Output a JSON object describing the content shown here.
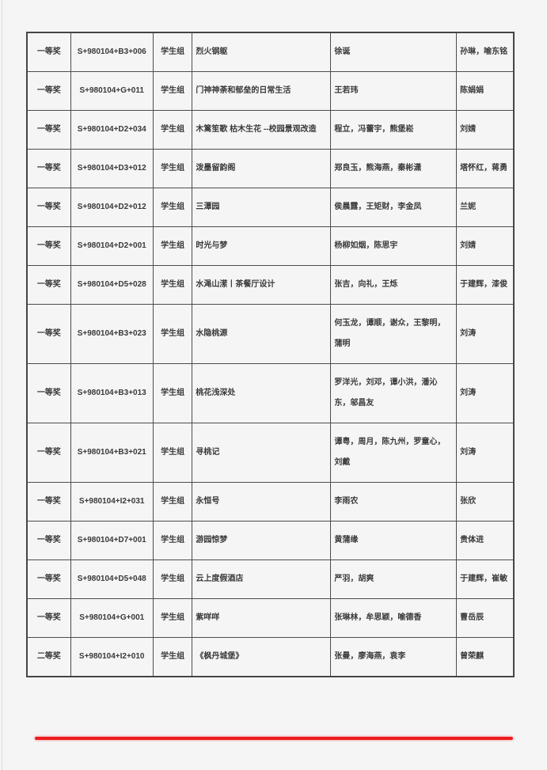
{
  "page": {
    "background_color": "#f5f5f6",
    "divider_color": "#ec1d1d",
    "border_color": "#4c4c4c",
    "text_color": "#3a3a3a"
  },
  "table": {
    "column_keys": [
      "award",
      "code",
      "group",
      "title",
      "authors",
      "advisors"
    ],
    "rows": [
      {
        "award": "一等奖",
        "code": "S+980104+B3+006",
        "group": "学生组",
        "title": "烈火钢躯",
        "authors": "徐诞",
        "advisors": "孙琳，喻东铭"
      },
      {
        "award": "一等奖",
        "code": "S+980104+G+011",
        "group": "学生组",
        "title": "门神神荼和郁垒的日常生活",
        "authors": "王若玮",
        "advisors": "陈娟娟"
      },
      {
        "award": "一等奖",
        "code": "S+980104+D2+034",
        "group": "学生组",
        "title": "木篱笙歌 枯木生花 --校园景观改造",
        "authors": "程立，冯蕾宇，熊堡崧",
        "advisors": "刘婧"
      },
      {
        "award": "一等奖",
        "code": "S+980104+D3+012",
        "group": "学生组",
        "title": "泼墨留韵阁",
        "authors": "郑良玉，熊海燕，秦彬潇",
        "advisors": "塔怀红，蒋勇"
      },
      {
        "award": "一等奖",
        "code": "S+980104+D2+012",
        "group": "学生组",
        "title": "三潭园",
        "authors": "侯晨露，王矩财，李金凤",
        "advisors": "兰妮"
      },
      {
        "award": "一等奖",
        "code": "S+980104+D2+001",
        "group": "学生组",
        "title": "时光与梦",
        "authors": "杨柳如烟，陈思宇",
        "advisors": "刘婧"
      },
      {
        "award": "一等奖",
        "code": "S+980104+D5+028",
        "group": "学生组",
        "title": "水渑山潆丨茶餐厅设计",
        "authors": "张吉，向礼，王烁",
        "advisors": "于建辉，漆俊"
      },
      {
        "award": "一等奖",
        "code": "S+980104+B3+023",
        "group": "学生组",
        "title": "水隐桃源",
        "authors": "何玉龙，谭顺，谢众，王黎明，蒲明",
        "advisors": "刘涛"
      },
      {
        "award": "一等奖",
        "code": "S+980104+B3+013",
        "group": "学生组",
        "title": "桃花浅深处",
        "authors": "罗洋光，刘邓，谭小洪，潘沁东，邬昌友",
        "advisors": "刘涛"
      },
      {
        "award": "一等奖",
        "code": "S+980104+B3+021",
        "group": "学生组",
        "title": "寻桃记",
        "authors": "谭粤，周月，陈九州，罗童心，刘戴",
        "advisors": "刘涛"
      },
      {
        "award": "一等奖",
        "code": "S+980104+I2+031",
        "group": "学生组",
        "title": "永恒号",
        "authors": "李雨农",
        "advisors": "张欣"
      },
      {
        "award": "一等奖",
        "code": "S+980104+D7+001",
        "group": "学生组",
        "title": "游园惊梦",
        "authors": "黄蒲缘",
        "advisors": "贵体进"
      },
      {
        "award": "一等奖",
        "code": "S+980104+D5+048",
        "group": "学生组",
        "title": "云上度假酒店",
        "authors": "严羽，胡爽",
        "advisors": "于建辉，崔敏"
      },
      {
        "award": "一等奖",
        "code": "S+980104+G+001",
        "group": "学生组",
        "title": "紫咩咩",
        "authors": "张琳林，牟思颖，喻德香",
        "advisors": "曹岳辰"
      },
      {
        "award": "二等奖",
        "code": "S+980104+I2+010",
        "group": "学生组",
        "title": "《枫丹城堡》",
        "authors": "张曼，廖海燕，袁李",
        "advisors": "曾荣麒"
      }
    ]
  }
}
